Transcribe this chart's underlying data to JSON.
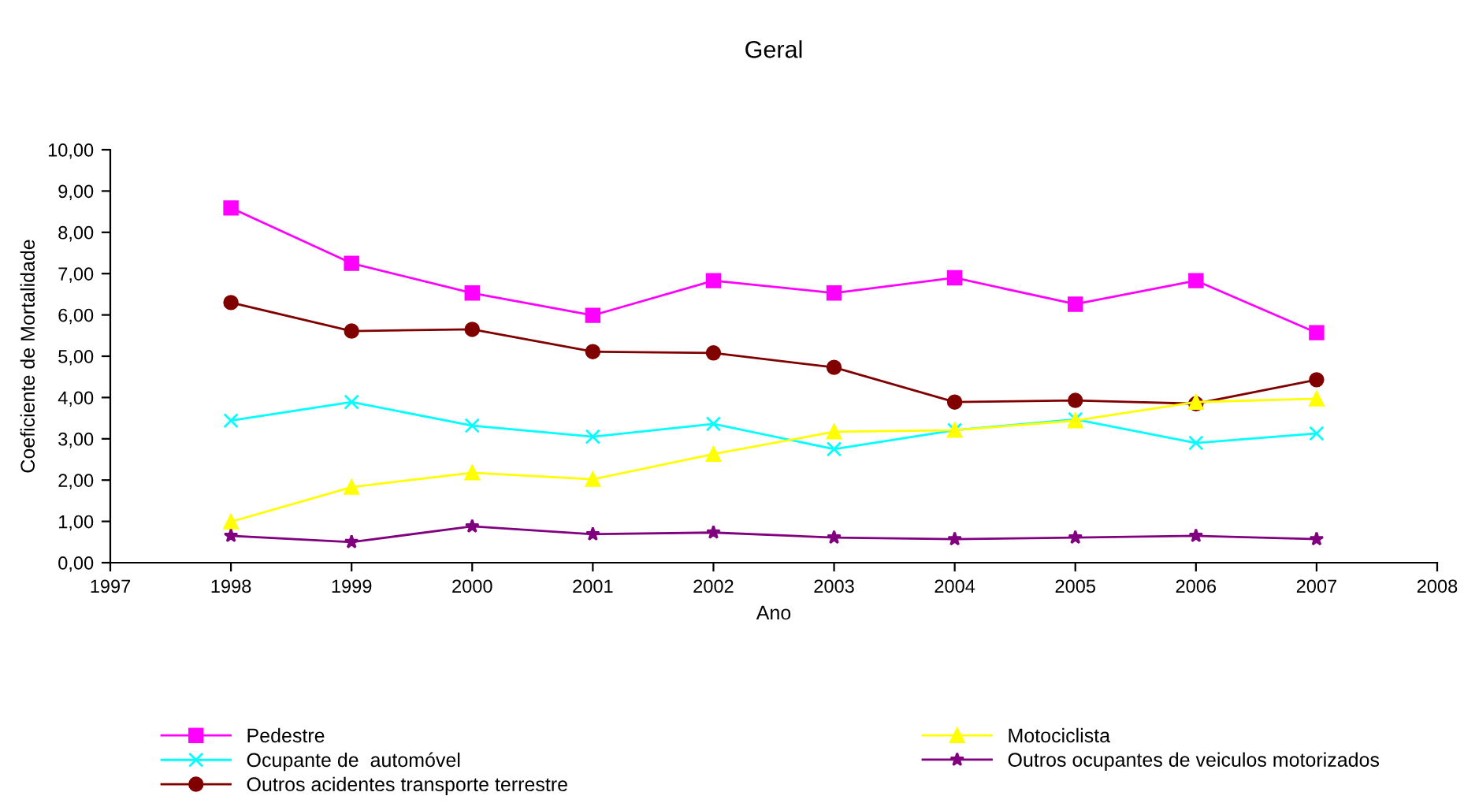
{
  "chart_data": {
    "type": "line",
    "title": "Geral",
    "xlabel": "Ano",
    "ylabel": "Coeficiente de Mortalidade",
    "x": [
      1998,
      1999,
      2000,
      2001,
      2002,
      2003,
      2004,
      2005,
      2006,
      2007
    ],
    "xlim": [
      1997,
      2008
    ],
    "xticks": [
      1997,
      1998,
      1999,
      2000,
      2001,
      2002,
      2003,
      2004,
      2005,
      2006,
      2007,
      2008
    ],
    "ylim": [
      0,
      10
    ],
    "yticks": [
      {
        "value": 0,
        "label": "0,00"
      },
      {
        "value": 1,
        "label": "1,00"
      },
      {
        "value": 2,
        "label": "2,00"
      },
      {
        "value": 3,
        "label": "3,00"
      },
      {
        "value": 4,
        "label": "4,00"
      },
      {
        "value": 5,
        "label": "5,00"
      },
      {
        "value": 6,
        "label": "6,00"
      },
      {
        "value": 7,
        "label": "7,00"
      },
      {
        "value": 8,
        "label": "8,00"
      },
      {
        "value": 9,
        "label": "9,00"
      },
      {
        "value": 10,
        "label": "10,00"
      }
    ],
    "grid": false,
    "legend": "bottom",
    "series": [
      {
        "name": "Pedestre",
        "color": "#ff00ff",
        "marker": "square",
        "values": [
          8.59,
          7.25,
          6.53,
          5.99,
          6.83,
          6.53,
          6.9,
          6.26,
          6.83,
          5.57
        ]
      },
      {
        "name": "Ocupante de  automóvel",
        "color": "#00ffff",
        "marker": "cross",
        "values": [
          3.44,
          3.89,
          3.32,
          3.05,
          3.36,
          2.75,
          3.21,
          3.47,
          2.9,
          3.13
        ]
      },
      {
        "name": "Outros acidentes transporte terrestre",
        "color": "#800000",
        "marker": "circle",
        "values": [
          6.3,
          5.61,
          5.65,
          5.11,
          5.08,
          4.73,
          3.89,
          3.93,
          3.85,
          4.43
        ]
      },
      {
        "name": "Motociclista",
        "color": "#ffff00",
        "marker": "triangle",
        "values": [
          0.99,
          1.83,
          2.18,
          2.02,
          2.63,
          3.17,
          3.21,
          3.44,
          3.89,
          3.97
        ]
      },
      {
        "name": "Outros ocupantes de veiculos motorizados",
        "color": "#800080",
        "marker": "star",
        "values": [
          0.65,
          0.5,
          0.88,
          0.69,
          0.73,
          0.61,
          0.57,
          0.61,
          0.65,
          0.57
        ]
      }
    ]
  }
}
